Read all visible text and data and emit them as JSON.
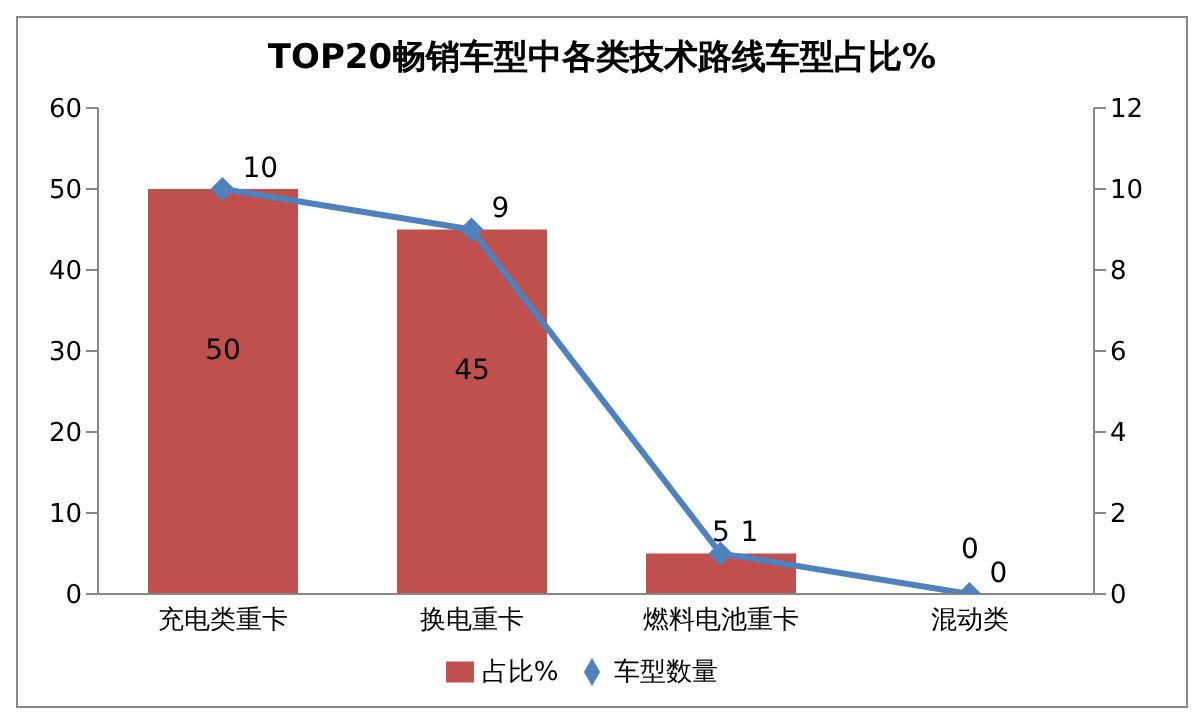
{
  "chart_data": {
    "type": "bar",
    "title": "TOP20畅销车型中各类技术路线车型占比%",
    "categories": [
      "充电类重卡",
      "换电重卡",
      "燃料电池重卡",
      "混动类"
    ],
    "series": [
      {
        "name": "占比%",
        "type": "bar",
        "color": "#c0504d",
        "values": [
          50,
          45,
          5,
          0
        ]
      },
      {
        "name": "车型数量",
        "type": "line",
        "axis": "y2",
        "color": "#4f81bd",
        "values": [
          10,
          9,
          1,
          0
        ],
        "marker": "diamond"
      }
    ],
    "ylim": [
      0,
      60
    ],
    "yticks": [
      0,
      10,
      20,
      30,
      40,
      50,
      60
    ],
    "y2lim": [
      0,
      12
    ],
    "y2ticks": [
      0,
      2,
      4,
      6,
      8,
      10,
      12
    ],
    "data_labels": true,
    "grid": false,
    "legend": "bottom"
  }
}
